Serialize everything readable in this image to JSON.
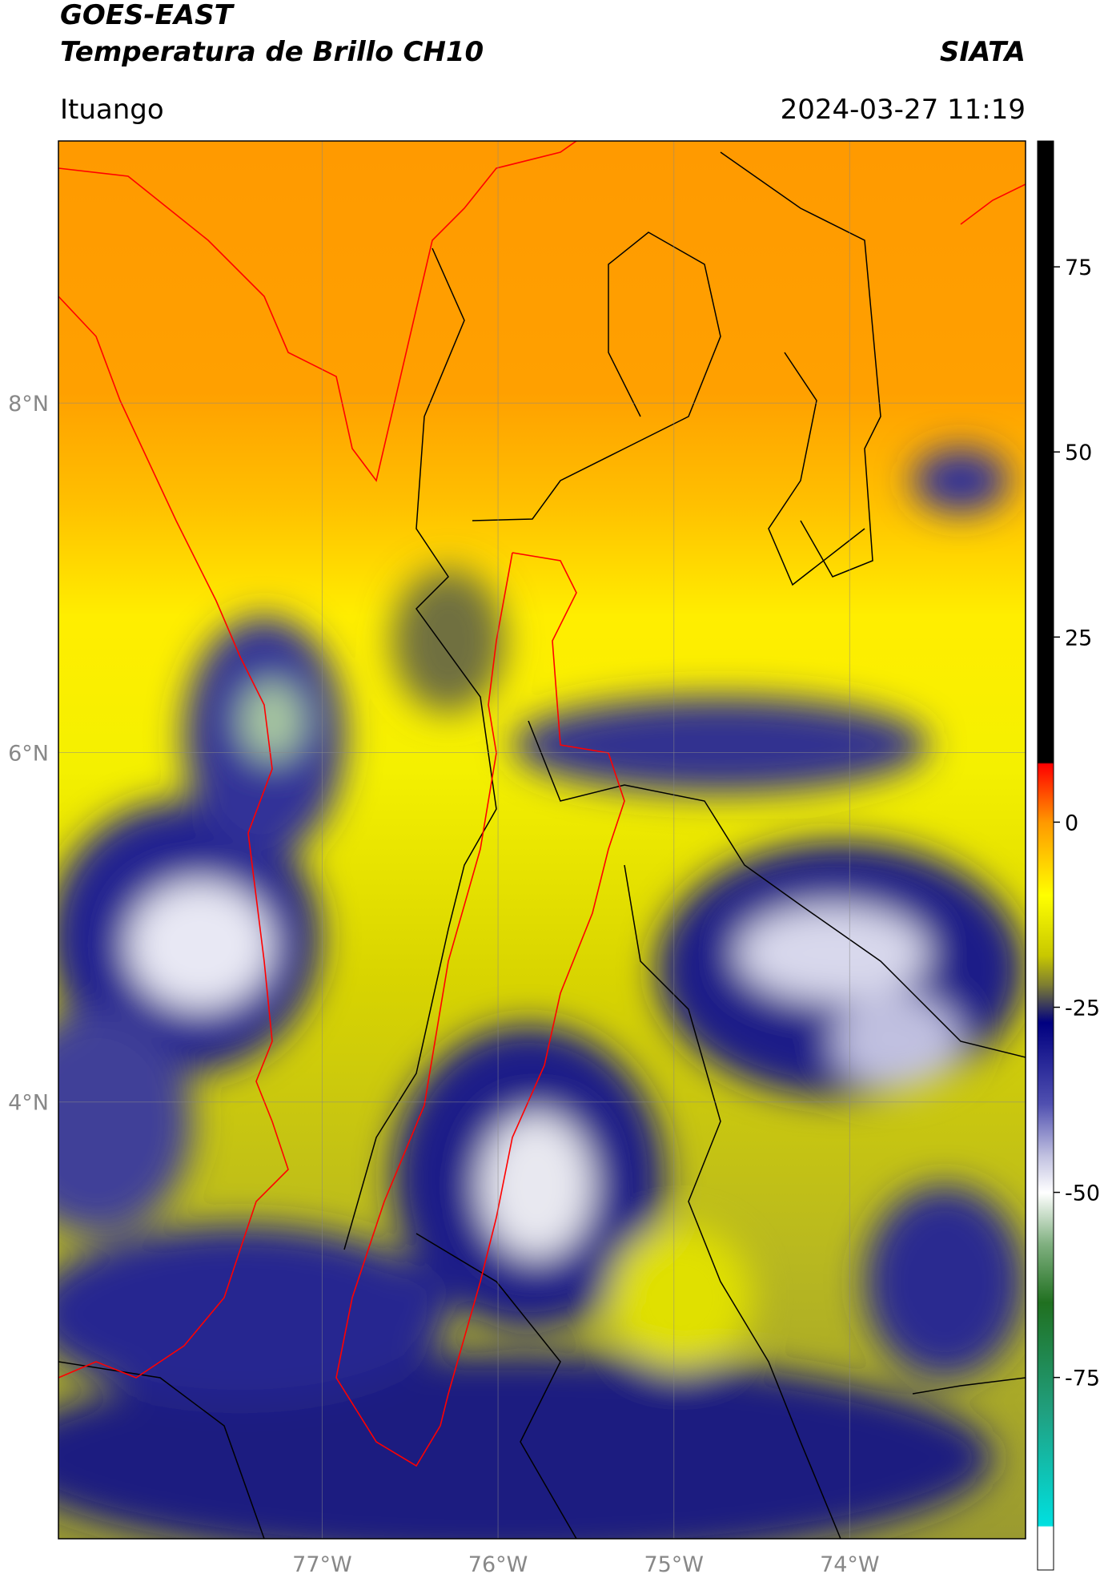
{
  "header": {
    "title": "GOES-EAST",
    "subtitle": "Temperatura de Brillo CH10",
    "brand": "SIATA",
    "location": "Ituango",
    "datetime": "2024-03-27 11:19"
  },
  "chart_data": {
    "type": "map",
    "xlim": [
      -78.5,
      -73.0
    ],
    "ylim": [
      1.5,
      9.5
    ],
    "xticks": [
      {
        "value": -77,
        "label": "77°W"
      },
      {
        "value": -76,
        "label": "76°W"
      },
      {
        "value": -75,
        "label": "75°W"
      },
      {
        "value": -74,
        "label": "74°W"
      }
    ],
    "yticks": [
      {
        "value": 4,
        "label": "4°N"
      },
      {
        "value": 6,
        "label": "6°N"
      },
      {
        "value": 8,
        "label": "8°N"
      }
    ],
    "grid": true,
    "colorbar": {
      "lim": [
        -101,
        92
      ],
      "ticks": [
        -75,
        -50,
        -25,
        0,
        25,
        50,
        75
      ]
    }
  }
}
